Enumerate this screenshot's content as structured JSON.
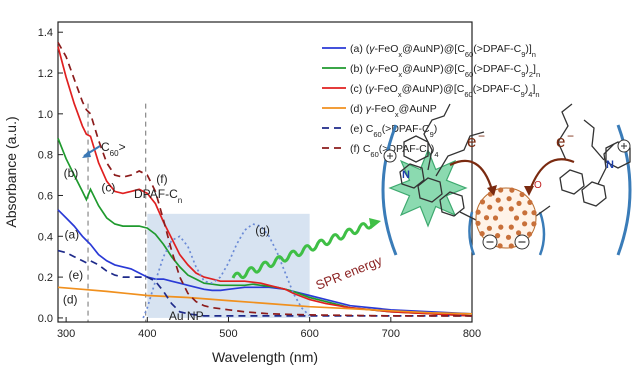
{
  "chart_data": {
    "type": "line",
    "xlabel": "Wavelength (nm)",
    "ylabel": "Absorbance (a.u.)",
    "xlim": [
      290,
      800
    ],
    "ylim": [
      -0.02,
      1.45
    ],
    "xticks": [
      300,
      400,
      500,
      600,
      700,
      800
    ],
    "yticks": [
      0.0,
      0.2,
      0.4,
      0.6,
      0.8,
      1.0,
      1.2,
      1.4
    ],
    "legend_position": "top-right",
    "series": [
      {
        "label": "(a)",
        "name": "(a) (γ-FeOx@AuNP)@[C60(>DPAF-C9)]n",
        "color": "#2a3ad6",
        "dash": "solid",
        "x": [
          290,
          300,
          310,
          320,
          325,
          330,
          340,
          350,
          360,
          370,
          380,
          390,
          400,
          410,
          420,
          430,
          440,
          450,
          460,
          470,
          480,
          490,
          500,
          510,
          520,
          530,
          540,
          550,
          560,
          570,
          580,
          600,
          620,
          650,
          700,
          750,
          800
        ],
        "y": [
          0.53,
          0.49,
          0.45,
          0.4,
          0.38,
          0.36,
          0.31,
          0.28,
          0.26,
          0.25,
          0.24,
          0.22,
          0.2,
          0.19,
          0.19,
          0.18,
          0.17,
          0.16,
          0.15,
          0.14,
          0.135,
          0.135,
          0.14,
          0.145,
          0.15,
          0.15,
          0.15,
          0.15,
          0.145,
          0.14,
          0.13,
          0.11,
          0.09,
          0.06,
          0.04,
          0.03,
          0.02
        ]
      },
      {
        "label": "(b)",
        "name": "(b) (γ-FeOx@AuNP)@[C60(>DPAF-C9)2]n",
        "color": "#1f9a2e",
        "dash": "solid",
        "x": [
          290,
          300,
          310,
          320,
          325,
          330,
          340,
          350,
          360,
          370,
          380,
          390,
          400,
          410,
          420,
          430,
          440,
          450,
          460,
          470,
          480,
          490,
          500,
          510,
          520,
          530,
          540,
          550,
          560,
          570,
          580,
          600,
          620,
          650,
          700,
          750,
          800
        ],
        "y": [
          0.88,
          0.78,
          0.7,
          0.62,
          0.58,
          0.63,
          0.55,
          0.49,
          0.46,
          0.45,
          0.45,
          0.45,
          0.44,
          0.41,
          0.36,
          0.3,
          0.25,
          0.21,
          0.19,
          0.17,
          0.165,
          0.16,
          0.16,
          0.16,
          0.16,
          0.165,
          0.16,
          0.155,
          0.15,
          0.14,
          0.13,
          0.1,
          0.08,
          0.05,
          0.03,
          0.02,
          0.01
        ]
      },
      {
        "label": "(c)",
        "name": "(c) (γ-FeOx@AuNP)@[C60(>DPAF-C9)4]n",
        "color": "#e02020",
        "dash": "solid",
        "x": [
          290,
          300,
          310,
          320,
          325,
          330,
          340,
          350,
          360,
          370,
          380,
          390,
          400,
          410,
          420,
          430,
          440,
          450,
          460,
          470,
          480,
          490,
          500,
          510,
          520,
          530,
          540,
          550,
          560,
          570,
          580,
          600,
          620,
          650,
          700,
          750,
          800
        ],
        "y": [
          1.33,
          1.18,
          1.05,
          0.94,
          0.9,
          0.89,
          0.76,
          0.67,
          0.62,
          0.61,
          0.62,
          0.63,
          0.61,
          0.56,
          0.47,
          0.39,
          0.31,
          0.26,
          0.22,
          0.2,
          0.19,
          0.18,
          0.18,
          0.18,
          0.18,
          0.175,
          0.17,
          0.16,
          0.15,
          0.14,
          0.12,
          0.09,
          0.07,
          0.05,
          0.03,
          0.02,
          0.01
        ]
      },
      {
        "label": "(d)",
        "name": "(d) γ-FeOx@AuNP",
        "color": "#f0901e",
        "dash": "solid",
        "x": [
          290,
          320,
          350,
          400,
          450,
          500,
          550,
          600,
          650,
          700,
          750,
          800
        ],
        "y": [
          0.15,
          0.14,
          0.13,
          0.11,
          0.1,
          0.085,
          0.07,
          0.055,
          0.045,
          0.035,
          0.025,
          0.02
        ]
      },
      {
        "label": "(e)",
        "name": "(e) C60(>DPAF-C9)",
        "color": "#1e2a8a",
        "dash": "dashed",
        "x": [
          290,
          300,
          310,
          320,
          325,
          330,
          340,
          350,
          360,
          370,
          380,
          390,
          400,
          410,
          420,
          430,
          440,
          450,
          460,
          470,
          480,
          490,
          500,
          550,
          600,
          700,
          800
        ],
        "y": [
          0.33,
          0.32,
          0.3,
          0.28,
          0.27,
          0.28,
          0.26,
          0.23,
          0.21,
          0.2,
          0.2,
          0.2,
          0.2,
          0.18,
          0.13,
          0.07,
          0.03,
          0.02,
          0.015,
          0.01,
          0.01,
          0.01,
          0.01,
          0.01,
          0.01,
          0.01,
          0.01
        ]
      },
      {
        "label": "(f)",
        "name": "(f) C60(>DPAF-C9)4",
        "color": "#8c1c1c",
        "dash": "dashed",
        "x": [
          290,
          300,
          310,
          320,
          325,
          330,
          340,
          350,
          360,
          370,
          380,
          390,
          400,
          410,
          420,
          430,
          440,
          450,
          460,
          470,
          480,
          490,
          500,
          520,
          550,
          600,
          700,
          800
        ],
        "y": [
          1.35,
          1.28,
          1.17,
          1.06,
          1.02,
          1.0,
          0.87,
          0.76,
          0.7,
          0.69,
          0.7,
          0.72,
          0.7,
          0.62,
          0.48,
          0.33,
          0.2,
          0.12,
          0.08,
          0.06,
          0.05,
          0.045,
          0.04,
          0.03,
          0.02,
          0.015,
          0.01,
          0.01
        ]
      },
      {
        "label": "(g)",
        "name": "Au NP",
        "color": "#6a8ad6",
        "dash": "dotted",
        "x": [
          395,
          400,
          410,
          420,
          430,
          440,
          450,
          460,
          470,
          480,
          490,
          500,
          510,
          520,
          530,
          540,
          550,
          560,
          570,
          580,
          590,
          600
        ],
        "y": [
          0.0,
          0.05,
          0.18,
          0.3,
          0.38,
          0.4,
          0.35,
          0.25,
          0.18,
          0.17,
          0.2,
          0.27,
          0.36,
          0.43,
          0.46,
          0.45,
          0.4,
          0.32,
          0.22,
          0.12,
          0.05,
          0.01
        ]
      }
    ],
    "shaded_region": {
      "x": [
        400,
        600
      ],
      "y": [
        0,
        0.51
      ]
    },
    "vertical_markers": [
      327,
      398
    ],
    "annotations": [
      {
        "text": "(a)",
        "x": 307,
        "y": 0.39
      },
      {
        "text": "(b)",
        "x": 306,
        "y": 0.69
      },
      {
        "text": "(c)",
        "x": 352,
        "y": 0.62
      },
      {
        "text": "(d)",
        "x": 305,
        "y": 0.07
      },
      {
        "text": "(e)",
        "x": 312,
        "y": 0.19
      },
      {
        "text": "(f)",
        "x": 418,
        "y": 0.66
      },
      {
        "text": "(g)",
        "x": 542,
        "y": 0.41
      },
      {
        "text": "Au NP",
        "x": 448,
        "y": -0.01
      }
    ]
  },
  "labels": {
    "c60_prefix": "C",
    "c60_sub": "60",
    "c60_suffix": ">",
    "dpaf": "DPAF-C",
    "dpaf_sub": "n",
    "spr": "SPR energy",
    "e1": "e",
    "e2": "e",
    "minus": "−"
  },
  "legend": [
    {
      "key": "a",
      "tag": "(a) (",
      "g": "γ",
      "t1": "-FeO",
      "s1": "x",
      "t2": "@AuNP)@[C",
      "s2": "60",
      "t3": "(>DPAF-C",
      "s3": "9",
      "t4": ")]",
      "s4": "n"
    },
    {
      "key": "b",
      "tag": "(b) (",
      "g": "γ",
      "t1": "-FeO",
      "s1": "x",
      "t2": "@AuNP)@[C",
      "s2": "60",
      "t3": "(>DPAF-C",
      "s3": "9",
      "t4": ")",
      "s4": "2",
      "t5": "]",
      "s5": "n"
    },
    {
      "key": "c",
      "tag": "(c) (",
      "g": "γ",
      "t1": "-FeO",
      "s1": "x",
      "t2": "@AuNP)@[C",
      "s2": "60",
      "t3": "(>DPAF-C",
      "s3": "9",
      "t4": ")",
      "s4": "4",
      "t5": "]",
      "s5": "n"
    },
    {
      "key": "d",
      "tag": "(d) ",
      "g": "γ",
      "t1": "-FeO",
      "s1": "x",
      "t2": "@AuNP"
    },
    {
      "key": "e",
      "tag": "(e) C",
      "s1": "60",
      "t2": "(>DPAF-C",
      "s2": "9",
      "t3": ")"
    },
    {
      "key": "f",
      "tag": "(f) C",
      "s1": "60",
      "t2": "(>DPAF-C",
      "s2": "9",
      "t3": ")",
      "s3": "4"
    }
  ]
}
